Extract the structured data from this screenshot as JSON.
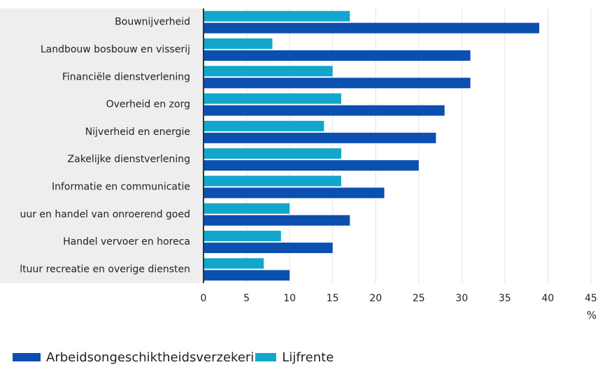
{
  "chart_data": {
    "type": "bar",
    "orientation": "horizontal",
    "categories": [
      "Bouwnijverheid",
      "Landbouw bosbouw en visserij",
      "Financiële dienstverlening",
      "Overheid en zorg",
      "Nijverheid en energie",
      "Zakelijke dienstverlening",
      "Informatie en communicatie",
      "uur en handel van onroerend goed",
      "Handel vervoer en horeca",
      "ltuur recreatie en overige diensten"
    ],
    "series": [
      {
        "name": "Lijfrente",
        "color": "#12a6cc",
        "values": [
          17,
          8,
          15,
          16,
          14,
          16,
          16,
          10,
          9,
          7
        ]
      },
      {
        "name": "Arbeidsongeschiktheidsverzekeri",
        "color": "#0b4fb0",
        "values": [
          39,
          31,
          31,
          28,
          27,
          25,
          21,
          17,
          15,
          10
        ]
      }
    ],
    "xlim": [
      0,
      45
    ],
    "xticks": [
      "0",
      "5",
      "10",
      "15",
      "20",
      "25",
      "30",
      "35",
      "40",
      "45"
    ],
    "xunit": "%",
    "grid": true,
    "legend_position": "bottom-left"
  },
  "legend": {
    "items": [
      {
        "label": "Arbeidsongeschiktheidsverzekeri",
        "color": "#0b4fb0"
      },
      {
        "label": "Lijfrente",
        "color": "#12a6cc"
      }
    ]
  },
  "colors": {
    "label_background": "#eeeeee",
    "grid": "#e3e3e3",
    "axis": "#333333"
  }
}
